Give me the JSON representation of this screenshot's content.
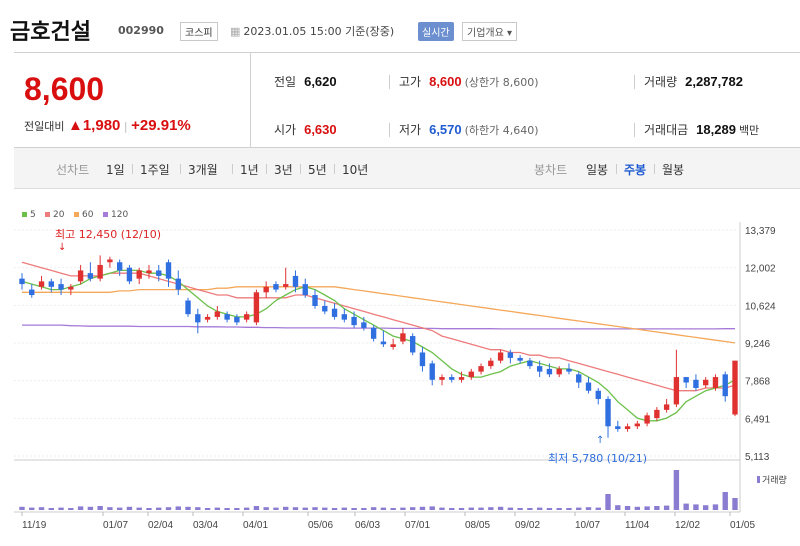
{
  "header": {
    "name": "금호건설",
    "code": "002990",
    "market": "코스피",
    "datetime": "2023.01.05 15:00 기준(장중)",
    "realtime": "실시간",
    "overview": "기업개요 ▾"
  },
  "quote": {
    "price": "8,600",
    "change_label": "전일대비",
    "change_arrow": "▲",
    "change": "1,980",
    "change_sep": "|",
    "change_pct": "+29.91%",
    "prev_label": "전일",
    "prev": "6,620",
    "open_label": "시가",
    "open": "6,630",
    "high_label": "고가",
    "high": "8,600",
    "upper_limit": "(상한가 8,600)",
    "low_label": "저가",
    "low": "6,570",
    "lower_limit": "(하한가 4,640)",
    "volume_label": "거래량",
    "volume": "2,287,782",
    "amount_label": "거래대금",
    "amount": "18,289",
    "amount_unit": "백만"
  },
  "periods": {
    "line_label": "선차트",
    "line": [
      "1일",
      "1주일",
      "3개월",
      "1년",
      "3년",
      "5년",
      "10년"
    ],
    "candle_label": "봉차트",
    "candle": [
      "일봉",
      "주봉",
      "월봉"
    ],
    "active_candle": "주봉"
  },
  "colors": {
    "up": "#e03131",
    "down": "#2f6fe0",
    "ma5": "#6cc04a",
    "ma20": "#ee7b7b",
    "ma60": "#f5a85a",
    "ma120": "#a57ad8",
    "volume": "#8a7cd1"
  },
  "chart_data": {
    "type": "candlestick",
    "legend": [
      "5",
      "20",
      "60",
      "120"
    ],
    "yticks": [
      "13,379",
      "12,002",
      "10,624",
      "9,246",
      "7,868",
      "6,491",
      "5,113"
    ],
    "ylim": [
      5113,
      13379
    ],
    "xticks": [
      "11/19",
      "01/07",
      "02/04",
      "03/04",
      "04/01",
      "05/06",
      "06/03",
      "07/01",
      "08/05",
      "09/02",
      "10/07",
      "11/04",
      "12/02",
      "01/05"
    ],
    "annotations": {
      "high": "최고 12,450 (12/10)",
      "low": "최저 5,780 (10/21)"
    },
    "volume_label": "거래량",
    "candles": [
      [
        11600,
        11400,
        11800,
        11200
      ],
      [
        11200,
        11000,
        11400,
        10900
      ],
      [
        11300,
        11500,
        11700,
        11200
      ],
      [
        11500,
        11300,
        11600,
        11100
      ],
      [
        11400,
        11200,
        11600,
        11000
      ],
      [
        11200,
        11300,
        11400,
        11000
      ],
      [
        11500,
        11900,
        12100,
        11400
      ],
      [
        11800,
        11600,
        12200,
        11500
      ],
      [
        11600,
        12100,
        12450,
        11500
      ],
      [
        12200,
        12300,
        12400,
        12000
      ],
      [
        12200,
        11900,
        12300,
        11700
      ],
      [
        12000,
        11500,
        12100,
        11400
      ],
      [
        11600,
        11900,
        12000,
        11400
      ],
      [
        11800,
        11900,
        12100,
        11600
      ],
      [
        11900,
        11700,
        12100,
        11500
      ],
      [
        12200,
        11600,
        12300,
        11300
      ],
      [
        11600,
        11200,
        11900,
        11000
      ],
      [
        10800,
        10300,
        10900,
        10200
      ],
      [
        10300,
        10000,
        10500,
        9600
      ],
      [
        10100,
        10200,
        10300,
        10000
      ],
      [
        10200,
        10400,
        10600,
        10100
      ],
      [
        10300,
        10100,
        10400,
        10000
      ],
      [
        10200,
        10000,
        10300,
        9900
      ],
      [
        10100,
        10300,
        10400,
        10000
      ],
      [
        10000,
        11100,
        11200,
        9900
      ],
      [
        11100,
        11300,
        11500,
        10900
      ],
      [
        11400,
        11200,
        11500,
        11100
      ],
      [
        11300,
        11400,
        12000,
        11200
      ],
      [
        11700,
        11300,
        11900,
        11100
      ],
      [
        11400,
        11000,
        11600,
        10900
      ],
      [
        11000,
        10600,
        11200,
        10500
      ],
      [
        10600,
        10400,
        10800,
        10300
      ],
      [
        10500,
        10200,
        10700,
        10100
      ],
      [
        10300,
        10100,
        10500,
        10000
      ],
      [
        10200,
        9900,
        10400,
        9800
      ],
      [
        10000,
        9800,
        10200,
        9700
      ],
      [
        9800,
        9400,
        9900,
        9300
      ],
      [
        9300,
        9200,
        9700,
        9100
      ],
      [
        9100,
        9200,
        9400,
        9000
      ],
      [
        9300,
        9600,
        9800,
        9200
      ],
      [
        9500,
        8900,
        9600,
        8800
      ],
      [
        8900,
        8400,
        9100,
        8200
      ],
      [
        8500,
        7900,
        8600,
        7700
      ],
      [
        7900,
        8000,
        8100,
        7700
      ],
      [
        8000,
        7900,
        8100,
        7800
      ],
      [
        7900,
        8000,
        8200,
        7800
      ],
      [
        8000,
        8200,
        8300,
        7900
      ],
      [
        8200,
        8400,
        8500,
        8100
      ],
      [
        8400,
        8600,
        8700,
        8300
      ],
      [
        8600,
        8900,
        9000,
        8500
      ],
      [
        8900,
        8700,
        9000,
        8500
      ],
      [
        8700,
        8600,
        8800,
        8500
      ],
      [
        8600,
        8400,
        8700,
        8300
      ],
      [
        8400,
        8200,
        8600,
        8000
      ],
      [
        8300,
        8100,
        8500,
        8000
      ],
      [
        8100,
        8300,
        8400,
        8000
      ],
      [
        8300,
        8200,
        8500,
        8100
      ],
      [
        8100,
        7800,
        8200,
        7600
      ],
      [
        7800,
        7500,
        8000,
        7400
      ],
      [
        7500,
        7200,
        7600,
        7000
      ],
      [
        7200,
        6200,
        7300,
        5780
      ],
      [
        6200,
        6100,
        6400,
        6000
      ],
      [
        6100,
        6200,
        6300,
        6000
      ],
      [
        6200,
        6300,
        6400,
        6100
      ],
      [
        6300,
        6600,
        6700,
        6200
      ],
      [
        6500,
        6800,
        6900,
        6400
      ],
      [
        6800,
        7000,
        7200,
        6700
      ],
      [
        7000,
        8000,
        9000,
        6900
      ],
      [
        8000,
        7800,
        8000,
        7600
      ],
      [
        7900,
        7600,
        8100,
        7500
      ],
      [
        7700,
        7900,
        8000,
        7600
      ],
      [
        7600,
        8000,
        8100,
        7500
      ],
      [
        8100,
        7300,
        8200,
        7100
      ],
      [
        6630,
        8600,
        8600,
        6570
      ]
    ],
    "ma5": [
      11500,
      11400,
      11300,
      11200,
      11200,
      11300,
      11400,
      11600,
      11700,
      11800,
      11900,
      11900,
      11900,
      11800,
      11800,
      11700,
      11500,
      11200,
      10900,
      10600,
      10400,
      10300,
      10200,
      10200,
      10300,
      10500,
      10800,
      11000,
      11200,
      11300,
      11200,
      11000,
      10800,
      10500,
      10300,
      10100,
      9900,
      9700,
      9500,
      9400,
      9300,
      9100,
      8900,
      8600,
      8300,
      8100,
      8000,
      8000,
      8100,
      8200,
      8400,
      8500,
      8600,
      8500,
      8400,
      8300,
      8300,
      8200,
      8000,
      7800,
      7500,
      7100,
      6800,
      6500,
      6400,
      6400,
      6500,
      6700,
      7100,
      7300,
      7500,
      7600,
      7700,
      7900
    ],
    "ma20": [
      12200,
      12100,
      12000,
      11900,
      11800,
      11700,
      11700,
      11700,
      11700,
      11800,
      11800,
      11800,
      11800,
      11700,
      11600,
      11500,
      11400,
      11300,
      11200,
      11100,
      11000,
      11000,
      10900,
      10900,
      10900,
      10900,
      10900,
      10900,
      11000,
      11000,
      10900,
      10800,
      10700,
      10600,
      10500,
      10400,
      10300,
      10200,
      10100,
      10000,
      9900,
      9800,
      9700,
      9500,
      9400,
      9300,
      9200,
      9100,
      9000,
      9000,
      8900,
      8900,
      8800,
      8800,
      8700,
      8700,
      8600,
      8500,
      8400,
      8300,
      8200,
      8100,
      8000,
      7900,
      7800,
      7700,
      7600,
      7500,
      7500,
      7500,
      7600,
      7600,
      7600,
      7700
    ],
    "ma60": [
      11100,
      11100,
      11100,
      11100,
      11100,
      11100,
      11100,
      11100,
      11100,
      11100,
      11150,
      11150,
      11200,
      11200,
      11200,
      11200,
      11200,
      11200,
      11200,
      11200,
      11250,
      11250,
      11300,
      11300,
      11300,
      11300,
      11300,
      11300,
      11300,
      11300,
      11300,
      11300,
      11300,
      11250,
      11200,
      11150,
      11100,
      11050,
      11000,
      10950,
      10900,
      10850,
      10800,
      10750,
      10700,
      10650,
      10600,
      10550,
      10500,
      10450,
      10400,
      10350,
      10300,
      10250,
      10200,
      10150,
      10100,
      10050,
      10000,
      9950,
      9900,
      9850,
      9800,
      9750,
      9700,
      9650,
      9600,
      9550,
      9500,
      9450,
      9400,
      9350,
      9300,
      9250
    ],
    "ma120": [
      9900,
      9900,
      9900,
      9900,
      9900,
      9880,
      9870,
      9860,
      9860,
      9860,
      9860,
      9860,
      9850,
      9850,
      9850,
      9850,
      9850,
      9850,
      9840,
      9840,
      9840,
      9830,
      9830,
      9820,
      9820,
      9810,
      9810,
      9800,
      9800,
      9800,
      9800,
      9800,
      9800,
      9790,
      9790,
      9790,
      9790,
      9790,
      9780,
      9780,
      9780,
      9780,
      9780,
      9770,
      9770,
      9770,
      9770,
      9770,
      9770,
      9760,
      9760,
      9760,
      9760,
      9760,
      9760,
      9760,
      9760,
      9760,
      9760,
      9760,
      9760,
      9760,
      9760,
      9760,
      9760,
      9760,
      9760,
      9760,
      9760,
      9760,
      9760,
      9760,
      9770,
      9770
    ],
    "volume": [
      8,
      6,
      7,
      5,
      6,
      5,
      9,
      8,
      10,
      7,
      6,
      8,
      6,
      5,
      6,
      7,
      9,
      8,
      7,
      5,
      6,
      5,
      5,
      6,
      10,
      7,
      6,
      8,
      7,
      6,
      7,
      6,
      5,
      6,
      5,
      5,
      7,
      6,
      5,
      6,
      7,
      8,
      9,
      6,
      5,
      5,
      6,
      6,
      7,
      8,
      6,
      5,
      5,
      6,
      5,
      5,
      5,
      6,
      7,
      6,
      40,
      12,
      10,
      8,
      9,
      10,
      11,
      100,
      16,
      14,
      12,
      14,
      45,
      30
    ]
  }
}
